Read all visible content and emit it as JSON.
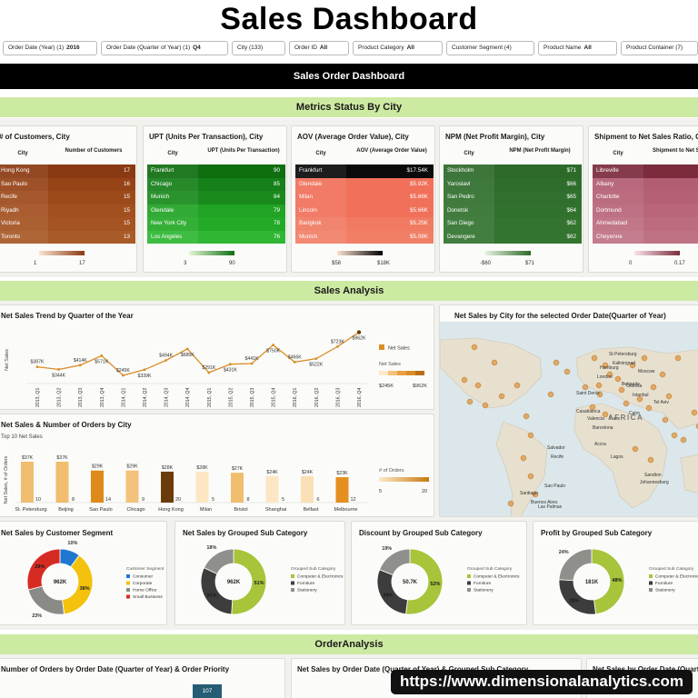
{
  "page": {
    "title": "Sales Dashboard"
  },
  "filters": [
    {
      "label": "Order Date (Year) (1)",
      "value": "2016"
    },
    {
      "label": "Order Date (Quarter of Year) (1)",
      "value": "Q4"
    },
    {
      "label": "City (133)",
      "value": ""
    },
    {
      "label": "Order ID",
      "value": "All"
    },
    {
      "label": "Product Category",
      "value": "All"
    },
    {
      "label": "Customer Segment (4)",
      "value": ""
    },
    {
      "label": "Product Name",
      "value": "All"
    },
    {
      "label": "Product Container (7)",
      "value": ""
    }
  ],
  "sections": {
    "sales_order": "Sales Order Dashboard",
    "metrics": "Metrics Status By City",
    "sales_analysis": "Sales Analysis",
    "order_analysis": "OrderAnalysis"
  },
  "metric_tables": [
    {
      "title": "# of Customers, City",
      "col_city": "City",
      "col_value": "Number of Customers",
      "rows": [
        [
          "Hong Kong",
          "17"
        ],
        [
          "Sao Paulo",
          "16"
        ],
        [
          "Recife",
          "15"
        ],
        [
          "Riyadh",
          "15"
        ],
        [
          "Victoria",
          "15"
        ],
        [
          "Toronto",
          "13"
        ]
      ],
      "legend_min": "1",
      "legend_max": "17",
      "colors": [
        "#8a3a12",
        "#964317",
        "#9d4a1b",
        "#a2501f",
        "#a45321",
        "#a85a27"
      ],
      "grad": [
        "#fbe4d2",
        "#8a3a12"
      ],
      "text_color": "#ffffff"
    },
    {
      "title": "UPT (Units Per Transaction), City",
      "col_city": "City",
      "col_value": "UPT (Units Per Transaction)",
      "rows": [
        [
          "Frankfurt",
          "90"
        ],
        [
          "Chicago",
          "85"
        ],
        [
          "Munich",
          "84"
        ],
        [
          "Glendale",
          "79"
        ],
        [
          "New York City",
          "78"
        ],
        [
          "Los Angeles",
          "76"
        ]
      ],
      "legend_min": "3",
      "legend_max": "90",
      "colors": [
        "#0f6e10",
        "#16801a",
        "#1a8a1d",
        "#21a325",
        "#23aa27",
        "#2fb733"
      ],
      "grad": [
        "#e4f7d7",
        "#0f6e10"
      ],
      "text_color": "#ffffff"
    },
    {
      "title": "AOV (Average Order Value), City",
      "col_city": "City",
      "col_value": "AOV (Average Order Value)",
      "rows": [
        [
          "Frankfurt",
          "$17.54K"
        ],
        [
          "Glendale",
          "$5.92K"
        ],
        [
          "Milan",
          "$5.66K"
        ],
        [
          "Lincoln",
          "$5.66K"
        ],
        [
          "Bangkok",
          "$5.25K"
        ],
        [
          "Munich",
          "$5.08K"
        ]
      ],
      "legend_min": "$58",
      "legend_max": "$18K",
      "colors": [
        "#0a0a0a",
        "#f0705a",
        "#f0705a",
        "#f0705a",
        "#f07a62",
        "#f17f67"
      ],
      "grad": [
        "#fde3d2",
        "#000000"
      ],
      "text_color": "#ffffff"
    },
    {
      "title": "NPM (Net Profit Margin), City",
      "col_city": "City",
      "col_value": "NPM (Net Profit Margin)",
      "rows": [
        [
          "Stockholm",
          "$71"
        ],
        [
          "Yaroslavl",
          "$66"
        ],
        [
          "San Pedro",
          "$65"
        ],
        [
          "Donetsk",
          "$64"
        ],
        [
          "San Diego",
          "$62"
        ],
        [
          "Devangere",
          "$62"
        ]
      ],
      "legend_min": "-$60",
      "legend_max": "$71",
      "colors": [
        "#2d6a2a",
        "#2f6d2c",
        "#306f2d",
        "#31712e",
        "#33742f",
        "#33742f"
      ],
      "grad": [
        "#e7f2df",
        "#2d6a2a"
      ],
      "text_color": "#ffffff"
    },
    {
      "title": "Shipment to Net Sales Ratio, C",
      "col_city": "City",
      "col_value": "Shipment to Net Sales Ratio",
      "rows": [
        [
          "Libreville",
          ""
        ],
        [
          "Albany",
          ""
        ],
        [
          "Charlotte",
          ""
        ],
        [
          "Dortmund",
          ""
        ],
        [
          "Ahmedabad",
          ""
        ],
        [
          "Cheyenne",
          ""
        ]
      ],
      "legend_min": "0",
      "legend_max": "0.17",
      "colors": [
        "#7b2b3c",
        "#b35d72",
        "#b66075",
        "#b9667a",
        "#bd6c80",
        "#c07285"
      ],
      "grad": [
        "#f8e4e8",
        "#7b2b3c"
      ],
      "text_color": "#ffffff"
    }
  ],
  "trend": {
    "title": "Net Sales Trend by Quarter of the Year",
    "ylabel": "Net Sales",
    "legend_title": "Net Sales",
    "legend_label": "Net Sales",
    "legend_min": "$245K",
    "legend_max": "$962K",
    "chart_data": {
      "type": "line",
      "x": [
        "2013, Q1",
        "2013, Q2",
        "2013, Q3",
        "2013, Q4",
        "2014, Q1",
        "2014, Q2",
        "2014, Q3",
        "2014, Q4",
        "2015, Q1",
        "2015, Q2",
        "2015, Q3",
        "2015, Q4",
        "2016, Q1",
        "2016, Q2",
        "2016, Q3",
        "2016, Q4"
      ],
      "values": [
        387,
        344,
        414,
        571,
        245,
        339,
        494,
        685,
        291,
        431,
        441,
        750,
        466,
        522,
        723,
        962
      ],
      "labels": [
        "$387K",
        "$344K",
        "$414K",
        "$571K",
        "$245K",
        "$339K",
        "$494K",
        "$685K",
        "$291K",
        "$431K",
        "$441K",
        "$750K",
        "$466K",
        "$522K",
        "$723K",
        "$962K"
      ]
    }
  },
  "top10": {
    "title": "Net Sales & Number of Orders by City",
    "subtitle": "Top 10 Net Sales",
    "ylabel": "Net Sales, # of Orders",
    "legend_title": "# of Orders",
    "legend_min": "5",
    "legend_max": "20",
    "chart_data": {
      "type": "bar",
      "categories": [
        "St. Petersburg",
        "Beijing",
        "Sao Paulo",
        "Chicago",
        "Hong Kong",
        "Milan",
        "Bristol",
        "Shanghai",
        "Belfast",
        "Melbourne"
      ],
      "values": [
        37,
        37,
        29,
        29,
        28,
        28,
        27,
        24,
        24,
        23
      ],
      "value_labels": [
        "$37K",
        "$37K",
        "$29K",
        "$29K",
        "$28K",
        "$28K",
        "$27K",
        "$24K",
        "$24K",
        "$23K"
      ],
      "orders": [
        10,
        8,
        14,
        9,
        20,
        5,
        8,
        5,
        6,
        12
      ],
      "colors": [
        "#f1bd6e",
        "#f1bd6e",
        "#dd8a1a",
        "#f3c27a",
        "#6b3c0b",
        "#fde6c4",
        "#f1bd6e",
        "#fde6c4",
        "#fbdfb6",
        "#e58f1f"
      ]
    }
  },
  "map": {
    "title": "Net Sales by City for the selected Order Date(Quarter of Year)",
    "labels": [
      "St Petersburg",
      "Kaliningrad",
      "Hamburg",
      "London",
      "Moscow",
      "Istanbul",
      "Odessa",
      "Saint Denis",
      "Casablanca",
      "Tel Aviv",
      "Cairo",
      "Barcelona",
      "Belgrade",
      "Valencia",
      "Tunis",
      "Lagos",
      "AFRICA",
      "Accra",
      "Salvador",
      "Recife",
      "Santiago",
      "Sao Paulo",
      "Buenos Aires",
      "Las Palmas",
      "Sandton",
      "Johannesburg"
    ]
  },
  "donuts": [
    {
      "title": "Net Sales by Customer Segment",
      "center": "962K",
      "legend_title": "Customer Segment",
      "chart_data": {
        "type": "pie",
        "labels": [
          "Consumer",
          "Corporate",
          "Home Office",
          "Small Business"
        ],
        "values": [
          10,
          38,
          23,
          29
        ],
        "value_labels": [
          "10%",
          "38%",
          "23%",
          "29%"
        ],
        "colors": [
          "#1f77d0",
          "#f4c20d",
          "#8a8a86",
          "#d62b22"
        ]
      }
    },
    {
      "title": "Net Sales by Grouped Sub Category",
      "center": "962K",
      "legend_title": "Grouped Sub Category",
      "chart_data": {
        "type": "pie",
        "labels": [
          "Computer & Electronics",
          "Furniture",
          "Stationery"
        ],
        "values": [
          51,
          31,
          18
        ],
        "value_labels": [
          "51%",
          "31%",
          "18%"
        ],
        "colors": [
          "#a7c43a",
          "#3d3d3d",
          "#8f8f8b"
        ]
      }
    },
    {
      "title": "Discount by Grouped Sub Category",
      "center": "50.7K",
      "legend_title": "Grouped Sub Category",
      "chart_data": {
        "type": "pie",
        "labels": [
          "Computer & Electronics",
          "Furniture",
          "Stationery"
        ],
        "values": [
          52,
          29,
          19
        ],
        "value_labels": [
          "52%",
          "29%",
          "19%"
        ],
        "colors": [
          "#a7c43a",
          "#3d3d3d",
          "#8f8f8b"
        ]
      }
    },
    {
      "title": "Profit by Grouped Sub Category",
      "center": "181K",
      "legend_title": "Grouped Sub Category",
      "chart_data": {
        "type": "pie",
        "labels": [
          "Computer & Electronics",
          "Furniture",
          "Stationery"
        ],
        "values": [
          48,
          28,
          24
        ],
        "value_labels": [
          "48%",
          "28%",
          "24%"
        ],
        "colors": [
          "#a7c43a",
          "#3d3d3d",
          "#8f8f8b"
        ]
      }
    }
  ],
  "order_cards": [
    {
      "title": "Number of Orders by Order Date (Quarter of Year) & Order Priority",
      "bar_value": "107"
    },
    {
      "title": "Net Sales by Order Date (Quarter of Year) & Grouped Sub Category"
    },
    {
      "title": "Net Sales by Order Date (Quarter of Year) & Grouped Sub"
    }
  ],
  "watermark": "https://www.dimensionalanalytics.com"
}
